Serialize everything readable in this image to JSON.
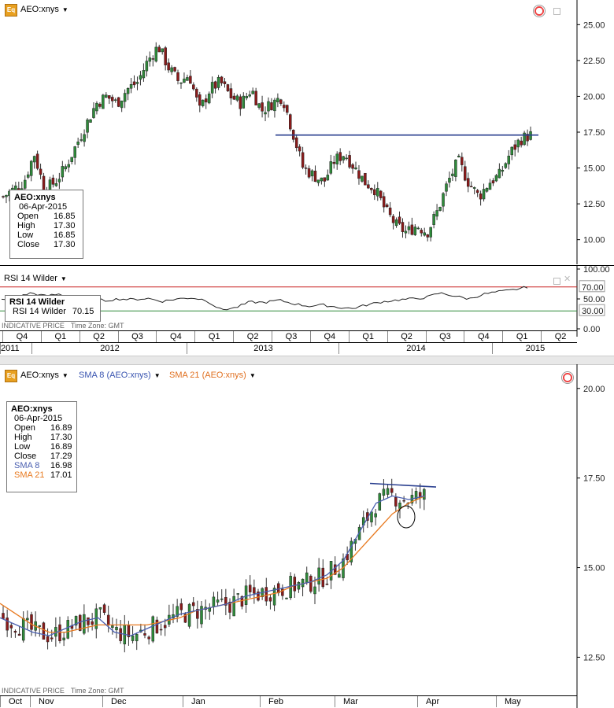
{
  "top_panel": {
    "header": {
      "symbol": "AEO:xnys",
      "eq_badge": "Eq",
      "dropdown_icon": "chevron-down-icon"
    },
    "y_ticks": [
      "25.00",
      "22.50",
      "20.00",
      "17.50",
      "15.00",
      "12.50",
      "10.00"
    ],
    "info": {
      "title": "AEO:xnys",
      "date": "06-Apr-2015",
      "rows": [
        [
          "Open",
          "16.85"
        ],
        [
          "High",
          "17.30"
        ],
        [
          "Low",
          "16.85"
        ],
        [
          "Close",
          "17.30"
        ]
      ]
    }
  },
  "rsi_panel": {
    "header": "RSI 14 Wilder",
    "y_ticks": [
      "100.00",
      "50.00",
      "0.00"
    ],
    "labels": {
      "upper": "70.00",
      "lower": "30.00"
    },
    "info": {
      "title": "RSI 14 Wilder",
      "label": "RSI 14 Wilder",
      "value": "70.15"
    },
    "indicative": "INDICATIVE PRICE",
    "timezone": "Time Zone: GMT"
  },
  "top_axis": {
    "quarters": [
      "Q4",
      "Q1",
      "Q2",
      "Q3",
      "Q4",
      "Q1",
      "Q2",
      "Q3",
      "Q4",
      "Q1",
      "Q2",
      "Q3",
      "Q4",
      "Q1",
      "Q2"
    ],
    "years": [
      "2011",
      "2012",
      "2013",
      "2014",
      "2015"
    ]
  },
  "bottom_panel": {
    "header": {
      "symbol": "AEO:xnys",
      "sma8": "SMA 8 (AEO:xnys)",
      "sma21": "SMA 21 (AEO:xnys)",
      "eq_badge": "Eq"
    },
    "y_ticks": [
      "20.00",
      "17.50",
      "15.00",
      "12.50"
    ],
    "info": {
      "title": "AEO:xnys",
      "date": "06-Apr-2015",
      "rows": [
        [
          "Open",
          "16.89"
        ],
        [
          "High",
          "17.30"
        ],
        [
          "Low",
          "16.89"
        ],
        [
          "Close",
          "17.29"
        ]
      ],
      "sma8": [
        "SMA 8",
        "16.98"
      ],
      "sma21": [
        "SMA 21",
        "17.01"
      ]
    },
    "indicative": "INDICATIVE PRICE",
    "timezone": "Time Zone: GMT",
    "months": [
      "Oct",
      "Nov",
      "Dec",
      "Jan",
      "Feb",
      "Mar",
      "Apr",
      "May"
    ]
  },
  "colors": {
    "up": "#2e8b3a",
    "down": "#8b1a1a",
    "trend": "#2a3f8f",
    "sma8": "#4a5fb0",
    "sma21": "#e87a20",
    "rsi_upper": "#c82020",
    "rsi_lower": "#2e8b3a"
  },
  "chart_data": [
    {
      "type": "candlestick",
      "title": "AEO:xnys",
      "ylim": [
        8.5,
        26.5
      ],
      "x_range": [
        "2011-Q4",
        "2015-Q2"
      ],
      "close_path": [
        13.0,
        13.5,
        14.0,
        16.0,
        13.5,
        14.0,
        15.0,
        16.5,
        18.0,
        19.5,
        20.0,
        19.5,
        20.5,
        21.0,
        22.5,
        23.5,
        22.0,
        21.0,
        21.5,
        19.0,
        20.5,
        21.0,
        20.0,
        19.5,
        20.5,
        19.0,
        19.5,
        20.0,
        17.5,
        15.0,
        14.5,
        14.0,
        15.5,
        16.0,
        15.0,
        14.0,
        13.5,
        12.0,
        11.0,
        10.5,
        11.0,
        10.5,
        12.0,
        14.0,
        15.5,
        14.0,
        13.0,
        14.0,
        14.5,
        16.0,
        17.0,
        17.3
      ],
      "trendline": 17.3,
      "series": [
        {
          "name": "AEO:xnys"
        }
      ]
    },
    {
      "type": "line",
      "title": "RSI 14 Wilder",
      "ylim": [
        0,
        100
      ],
      "values": [
        48,
        52,
        60,
        55,
        58,
        50,
        53,
        47,
        50,
        49,
        51,
        46,
        50,
        52,
        48,
        32,
        35,
        45,
        44,
        48,
        42,
        38,
        40,
        36,
        34,
        40,
        45,
        48,
        50,
        52,
        60,
        55,
        50,
        58,
        62,
        65,
        70
      ],
      "reference_lines": [
        70,
        30
      ],
      "last": 70.15
    },
    {
      "type": "candlestick",
      "title": "AEO:xnys",
      "ylim": [
        11.5,
        20.5
      ],
      "x_range": [
        "Oct",
        "May"
      ],
      "series": [
        {
          "name": "SMA 8 (AEO:xnys)",
          "values": [
            13.6,
            13.4,
            13.2,
            13.1,
            13.3,
            13.5,
            13.6,
            13.2,
            13.1,
            13.3,
            13.5,
            13.7,
            13.8,
            13.9,
            14.0,
            14.2,
            14.3,
            14.4,
            14.5,
            14.6,
            14.8,
            15.2,
            16.0,
            16.8,
            17.0,
            16.9,
            17.0
          ]
        },
        {
          "name": "SMA 21 (AEO:xnys)",
          "values": [
            14.0,
            13.7,
            13.4,
            13.2,
            13.2,
            13.3,
            13.4,
            13.4,
            13.4,
            13.4,
            13.5,
            13.6,
            13.8,
            13.9,
            14.0,
            14.1,
            14.2,
            14.3,
            14.5,
            14.6,
            14.7,
            15.0,
            15.5,
            16.0,
            16.5,
            16.8,
            17.0
          ]
        }
      ],
      "trendline": [
        17.35,
        17.25
      ]
    }
  ]
}
